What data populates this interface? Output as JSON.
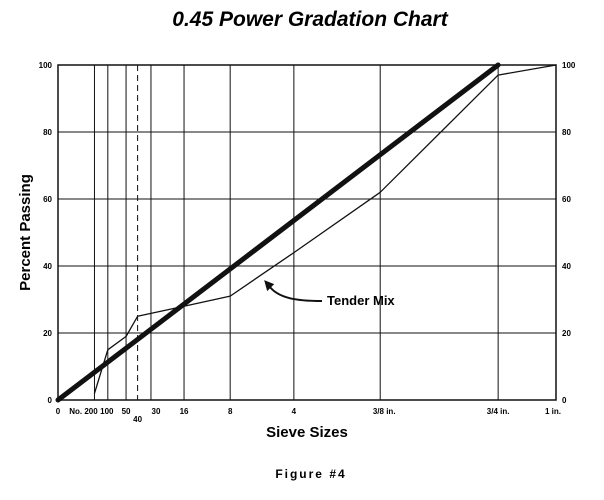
{
  "chart_data": {
    "type": "line",
    "title": "0.45 Power Gradation Chart",
    "xlabel": "Sieve Sizes",
    "ylabel": "Percent Passing",
    "caption": "Figure #4",
    "ylim": [
      0,
      100
    ],
    "yticks": [
      0,
      20,
      40,
      60,
      80,
      100
    ],
    "grid": true,
    "x_scale": "sieve size raised to 0.45 power (mm)",
    "sieves": [
      {
        "label": "0",
        "size_mm": 0
      },
      {
        "label": "No. 200",
        "size_mm": 0.075
      },
      {
        "label": "100",
        "size_mm": 0.15
      },
      {
        "label": "50",
        "size_mm": 0.3
      },
      {
        "label": "40",
        "size_mm": 0.425
      },
      {
        "label": "30",
        "size_mm": 0.6
      },
      {
        "label": "16",
        "size_mm": 1.18
      },
      {
        "label": "8",
        "size_mm": 2.36
      },
      {
        "label": "4",
        "size_mm": 4.75
      },
      {
        "label": "3/8 in.",
        "size_mm": 9.5
      },
      {
        "label": "3/4 in.",
        "size_mm": 19.0
      },
      {
        "label": "1 in.",
        "size_mm": 25.0
      }
    ],
    "series": [
      {
        "name": "",
        "style": "thick",
        "x_size_mm": [
          0,
          19.0
        ],
        "y": [
          0,
          100
        ]
      },
      {
        "name": "Tender Mix",
        "style": "thin",
        "x_size_mm": [
          0.075,
          0.15,
          0.3,
          0.425,
          1.18,
          2.36,
          4.75,
          9.5,
          19.0,
          25.0
        ],
        "y": [
          2,
          15,
          19,
          25,
          28,
          31,
          44,
          62,
          97,
          100
        ]
      }
    ],
    "annotation": {
      "text": "Tender Mix",
      "series": "Tender Mix"
    }
  }
}
